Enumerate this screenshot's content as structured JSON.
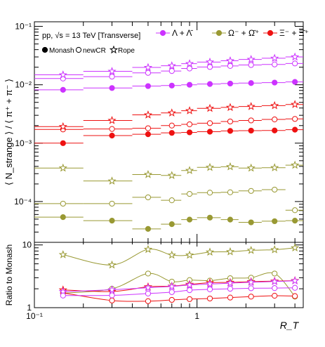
{
  "chart_data": {
    "type": "scatter",
    "colors": {
      "lambda": "#cc33ff",
      "omega": "#999933",
      "xi": "#ee1111",
      "black": "#000000",
      "grey": "#888888"
    },
    "top_panel": {
      "header": "pp, √s = 13 TeV [Transverse]",
      "ylabel": "⟨ N_strange ⟩ / ⟨ π⁺ + π⁻ ⟩",
      "yscale": "log",
      "ylim": [
        2e-05,
        0.12
      ],
      "xlim": [
        0.1,
        4.5
      ],
      "legend_species": [
        "Λ + Λ̄",
        "Ω⁻ + Ω̄⁺",
        "Ξ⁻ + Ξ̄⁺"
      ],
      "legend_models": [
        "Monash",
        "newCR",
        "Rope"
      ]
    },
    "bottom_panel": {
      "ylabel": "Ratio to Monash",
      "yscale": "log",
      "ylim": [
        1,
        11
      ],
      "xlim": [
        0.1,
        4.5
      ]
    },
    "xlabel": "R_T",
    "x_ticks": [
      {
        "value": 0.1,
        "label": "10⁻¹"
      },
      {
        "value": 1,
        "label": "1"
      }
    ],
    "y_ticks_top": [
      {
        "value": 0.1,
        "label": "10⁻¹"
      },
      {
        "value": 0.01,
        "label": "10⁻²"
      },
      {
        "value": 0.001,
        "label": "10⁻³"
      },
      {
        "value": 0.0001,
        "label": "10⁻⁴"
      }
    ],
    "y_ticks_bottom": [
      {
        "value": 1,
        "label": "1"
      },
      {
        "value": 10,
        "label": "10"
      }
    ],
    "x_bins": [
      [
        0.1,
        0.2
      ],
      [
        0.2,
        0.4
      ],
      [
        0.4,
        0.6
      ],
      [
        0.6,
        0.8
      ],
      [
        0.8,
        1.0
      ],
      [
        1.0,
        1.4
      ],
      [
        1.4,
        1.8
      ],
      [
        1.8,
        2.5
      ],
      [
        2.5,
        3.5
      ],
      [
        3.5,
        4.5
      ]
    ],
    "x_centers": [
      0.15,
      0.3,
      0.5,
      0.7,
      0.9,
      1.2,
      1.6,
      2.15,
      3.0,
      4.0
    ],
    "series": [
      {
        "name": "Λ + Λ̄",
        "model": "Monash",
        "color": "lambda",
        "marker": "filled-circle",
        "values": [
          0.0082,
          0.0088,
          0.0095,
          0.0097,
          0.01,
          0.0103,
          0.0105,
          0.0107,
          0.0109,
          0.0112
        ]
      },
      {
        "name": "Λ + Λ̄",
        "model": "newCR",
        "color": "lambda",
        "marker": "open-circle",
        "values": [
          0.0128,
          0.0138,
          0.016,
          0.0172,
          0.019,
          0.0202,
          0.021,
          0.0218,
          0.0223,
          0.0232
        ]
      },
      {
        "name": "Λ + Λ̄",
        "model": "Rope",
        "color": "lambda",
        "marker": "open-star",
        "values": [
          0.0148,
          0.017,
          0.0198,
          0.0212,
          0.023,
          0.0245,
          0.0258,
          0.0272,
          0.0285,
          0.03
        ]
      },
      {
        "name": "Ω⁻ + Ω̄⁺",
        "model": "Monash",
        "color": "omega",
        "marker": "filled-circle",
        "values": [
          5.4e-05,
          4.7e-05,
          3.4e-05,
          4.1e-05,
          4.9e-05,
          5.3e-05,
          4.9e-05,
          4.4e-05,
          4.6e-05,
          4.7e-05
        ]
      },
      {
        "name": "Ω⁻ + Ω̄⁺",
        "model": "newCR",
        "color": "omega",
        "marker": "open-circle",
        "values": [
          9.2e-05,
          9.2e-05,
          0.000118,
          0.000105,
          0.000135,
          0.000142,
          0.000144,
          0.000152,
          0.00016,
          7.1e-05
        ]
      },
      {
        "name": "Ω⁻ + Ω̄⁺",
        "model": "Rope",
        "color": "omega",
        "marker": "open-star",
        "values": [
          0.000375,
          0.000225,
          0.00029,
          0.00028,
          0.00034,
          0.000385,
          0.000395,
          0.000375,
          0.00038,
          0.00042
        ]
      },
      {
        "name": "Ξ⁻ + Ξ̄⁺",
        "model": "Monash",
        "color": "xi",
        "marker": "filled-circle",
        "values": [
          0.001,
          0.00135,
          0.00142,
          0.0015,
          0.00153,
          0.00157,
          0.00162,
          0.00164,
          0.00165,
          0.0017
        ]
      },
      {
        "name": "Ξ⁻ + Ξ̄⁺",
        "model": "newCR",
        "color": "xi",
        "marker": "open-circle",
        "values": [
          0.00172,
          0.00175,
          0.0018,
          0.002,
          0.0021,
          0.0022,
          0.00235,
          0.00245,
          0.00255,
          0.0026
        ]
      },
      {
        "name": "Ξ⁻ + Ξ̄⁺",
        "model": "Rope",
        "color": "xi",
        "marker": "open-star",
        "values": [
          0.00192,
          0.00245,
          0.00305,
          0.0033,
          0.0036,
          0.00395,
          0.0041,
          0.00425,
          0.0044,
          0.0046
        ]
      }
    ],
    "ratio_series": [
      {
        "name": "Ω⁻ + Ω̄⁺",
        "model": "Rope",
        "color": "omega",
        "marker": "open-star",
        "values": [
          7.0,
          4.8,
          8.5,
          6.9,
          6.9,
          7.7,
          7.8,
          8.2,
          8.4,
          9.0
        ]
      },
      {
        "name": "Ω⁻ + Ω̄⁺",
        "model": "newCR",
        "color": "omega",
        "marker": "open-circle",
        "values": [
          1.7,
          2.0,
          3.5,
          2.6,
          2.75,
          2.7,
          2.95,
          3.0,
          3.5,
          1.5
        ]
      },
      {
        "name": "Ξ⁻ + Ξ̄⁺",
        "model": "Rope",
        "color": "xi",
        "marker": "open-star",
        "values": [
          1.92,
          1.81,
          2.15,
          2.2,
          2.35,
          2.5,
          2.53,
          2.6,
          2.65,
          2.7
        ]
      },
      {
        "name": "Ξ⁻ + Ξ̄⁺",
        "model": "newCR",
        "color": "xi",
        "marker": "open-circle",
        "values": [
          1.72,
          1.3,
          1.27,
          1.33,
          1.37,
          1.4,
          1.45,
          1.5,
          1.55,
          1.53
        ]
      },
      {
        "name": "Λ + Λ̄",
        "model": "Rope",
        "color": "lambda",
        "marker": "open-star",
        "values": [
          1.8,
          1.93,
          2.08,
          2.18,
          2.3,
          2.38,
          2.46,
          2.54,
          2.61,
          2.68
        ]
      },
      {
        "name": "Λ + Λ̄",
        "model": "newCR",
        "color": "lambda",
        "marker": "open-circle",
        "values": [
          1.56,
          1.57,
          1.68,
          1.77,
          1.9,
          1.96,
          2.0,
          2.04,
          2.05,
          2.07
        ]
      }
    ]
  }
}
